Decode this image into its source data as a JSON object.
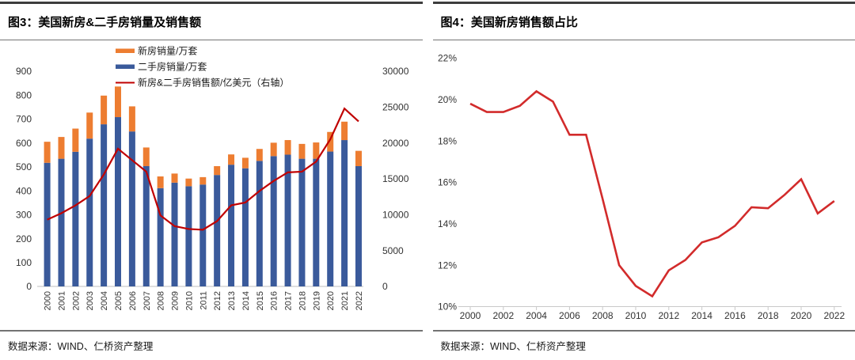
{
  "chart_data": [
    {
      "type": "bar+line",
      "title": "图3：美国新房&二手房销量及销售额",
      "source": "数据来源：WIND、仁桥资产整理",
      "categories": [
        "2000",
        "2001",
        "2002",
        "2003",
        "2004",
        "2005",
        "2006",
        "2007",
        "2008",
        "2009",
        "2010",
        "2011",
        "2012",
        "2013",
        "2014",
        "2015",
        "2016",
        "2017",
        "2018",
        "2019",
        "2020",
        "2021",
        "2022"
      ],
      "bar_mode": "stacked",
      "left_axis": {
        "min": 0,
        "max": 900,
        "step": 100
      },
      "right_axis": {
        "min": 0,
        "max": 30000,
        "step": 5000
      },
      "legend": [
        {
          "swatch": "bar",
          "label": "新房销量/万套",
          "color": "#ED7D31"
        },
        {
          "swatch": "bar",
          "label": "二手房销量/万套",
          "color": "#3A5A9B"
        },
        {
          "swatch": "line",
          "label": "新房&二手房销售额/亿美元（右轴）",
          "color": "#C00000"
        }
      ],
      "series": [
        {
          "name": "二手房销量/万套",
          "type": "bar",
          "axis": "left",
          "color": "#3A5A9B",
          "values": [
            517,
            534,
            563,
            618,
            678,
            708,
            648,
            503,
            411,
            434,
            419,
            426,
            466,
            509,
            494,
            525,
            545,
            551,
            534,
            534,
            564,
            612,
            503
          ]
        },
        {
          "name": "新房销量/万套",
          "type": "bar",
          "axis": "left",
          "color": "#ED7D31",
          "values": [
            88,
            91,
            97,
            109,
            120,
            128,
            105,
            78,
            49,
            38,
            32,
            31,
            37,
            43,
            44,
            50,
            56,
            61,
            62,
            68,
            82,
            77,
            64
          ]
        },
        {
          "name": "新房&二手房销售额/亿美元（右轴）",
          "type": "line",
          "axis": "right",
          "color": "#C00000",
          "values": [
            9300,
            10200,
            11300,
            12600,
            15600,
            19200,
            17600,
            16000,
            9900,
            8400,
            8000,
            7900,
            9100,
            11300,
            11700,
            13300,
            14700,
            15900,
            16000,
            17400,
            20500,
            24800,
            23000
          ]
        }
      ]
    },
    {
      "type": "line",
      "title": "图4：美国新房销售额占比",
      "source": "数据来源：WIND、仁桥资产整理",
      "x": [
        "2000",
        "2001",
        "2002",
        "2003",
        "2004",
        "2005",
        "2006",
        "2007",
        "2008",
        "2009",
        "2010",
        "2011",
        "2012",
        "2013",
        "2014",
        "2015",
        "2016",
        "2017",
        "2018",
        "2019",
        "2020",
        "2021",
        "2022"
      ],
      "values": [
        19.8,
        19.4,
        19.4,
        19.7,
        20.4,
        19.9,
        18.3,
        18.3,
        15.2,
        12.0,
        11.0,
        10.5,
        11.75,
        12.25,
        13.1,
        13.35,
        13.9,
        14.8,
        14.75,
        15.4,
        16.15,
        14.5,
        15.1
      ],
      "color": "#D22B2B",
      "y_axis": {
        "min": 10,
        "max": 22,
        "step": 2,
        "unit": "%"
      },
      "x_axis": {
        "label_step": 2
      }
    }
  ]
}
